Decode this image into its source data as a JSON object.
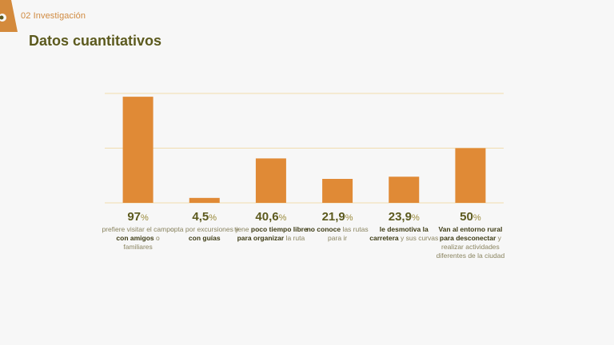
{
  "header": {
    "section_label": "02 Investigación",
    "title": "Datos cuantitativos"
  },
  "colors": {
    "bar": "#e08a36",
    "gridline": "#f0dcae",
    "title": "#5c5a1e",
    "accent": "#d08a40"
  },
  "chart_data": {
    "type": "bar",
    "title": "",
    "xlabel": "",
    "ylabel": "",
    "ylim": [
      0,
      100
    ],
    "grid": true,
    "categories": [
      "97%",
      "4,5%",
      "40,6%",
      "21,9%",
      "23,9%",
      "50%"
    ],
    "values": [
      97,
      4.5,
      40.6,
      21.9,
      23.9,
      50
    ],
    "stats": [
      {
        "number": "97",
        "unit": "%",
        "parts": [
          {
            "text": "prefiere visitar el campo ",
            "bold": false
          },
          {
            "text": "con amigos",
            "bold": true
          },
          {
            "text": " o familiares",
            "bold": false
          }
        ]
      },
      {
        "number": "4,5",
        "unit": "%",
        "parts": [
          {
            "text": "opta por excursiones y ",
            "bold": false
          },
          {
            "text": "con guías",
            "bold": true
          }
        ]
      },
      {
        "number": "40,6",
        "unit": "%",
        "parts": [
          {
            "text": "tiene ",
            "bold": false
          },
          {
            "text": "poco tiempo libre para organizar",
            "bold": true
          },
          {
            "text": " la ruta",
            "bold": false
          }
        ]
      },
      {
        "number": "21,9",
        "unit": "%",
        "parts": [
          {
            "text": "no conoce",
            "bold": true
          },
          {
            "text": " las rutas para ir",
            "bold": false
          }
        ]
      },
      {
        "number": "23,9",
        "unit": "%",
        "parts": [
          {
            "text": "le desmotiva la carretera",
            "bold": true
          },
          {
            "text": " y sus curvas",
            "bold": false
          }
        ]
      },
      {
        "number": "50",
        "unit": "%",
        "parts": [
          {
            "text": "Van al entorno rural para desconectar",
            "bold": true
          },
          {
            "text": " y realizar actividades diferentes de la ciudad",
            "bold": false
          }
        ]
      }
    ]
  }
}
